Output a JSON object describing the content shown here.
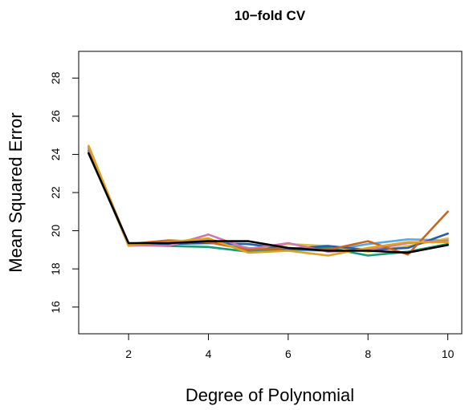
{
  "chart_data": {
    "type": "line",
    "title": "10−fold CV",
    "xlabel": "Degree of Polynomial",
    "ylabel": "Mean Squared Error",
    "xlim": [
      0.75,
      10.35
    ],
    "ylim": [
      14.6,
      29.4
    ],
    "xticks": [
      2,
      4,
      6,
      8,
      10
    ],
    "yticks": [
      16,
      18,
      20,
      22,
      24,
      26,
      28
    ],
    "grid": false,
    "legend": "none",
    "x": [
      1,
      2,
      3,
      4,
      5,
      6,
      7,
      8,
      9,
      10
    ],
    "series": [
      {
        "color": "#5aa9e6",
        "values": [
          24.3,
          19.25,
          19.3,
          19.5,
          19.1,
          19.0,
          18.95,
          19.3,
          19.55,
          19.5
        ]
      },
      {
        "color": "#d9c13a",
        "values": [
          24.2,
          19.2,
          19.3,
          19.4,
          19.0,
          19.3,
          19.2,
          18.9,
          19.2,
          19.6
        ]
      },
      {
        "color": "#1a9a7a",
        "values": [
          24.2,
          19.3,
          19.2,
          19.15,
          18.9,
          19.0,
          19.1,
          18.7,
          18.9,
          19.3
        ]
      },
      {
        "color": "#2a5ba8",
        "values": [
          24.1,
          19.3,
          19.3,
          19.35,
          19.3,
          19.05,
          19.2,
          19.0,
          19.1,
          19.85
        ]
      },
      {
        "color": "#cc79a7",
        "values": [
          24.3,
          19.25,
          19.2,
          19.8,
          19.05,
          19.35,
          18.9,
          19.0,
          19.35,
          19.5
        ]
      },
      {
        "color": "#c8651e",
        "values": [
          24.4,
          19.3,
          19.5,
          19.4,
          19.0,
          19.1,
          19.0,
          19.45,
          18.75,
          21.0
        ]
      },
      {
        "color": "#e0a020",
        "values": [
          24.45,
          19.25,
          19.4,
          19.6,
          18.85,
          18.95,
          18.7,
          19.1,
          19.4,
          19.4
        ]
      },
      {
        "color": "#000000",
        "values": [
          24.05,
          19.35,
          19.35,
          19.45,
          19.45,
          19.1,
          18.95,
          18.95,
          18.85,
          19.25
        ]
      }
    ]
  }
}
